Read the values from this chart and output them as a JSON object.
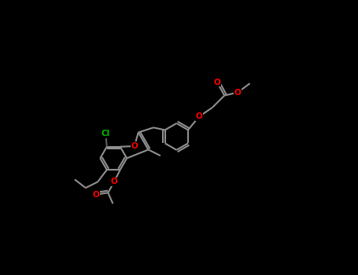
{
  "bg_color": "#000000",
  "bond_color": "#909090",
  "bond_width": 1.5,
  "fig_width": 4.55,
  "fig_height": 3.5,
  "dpi": 100,
  "atom_colors": {
    "O": "#ff0000",
    "Cl": "#00bb00"
  }
}
